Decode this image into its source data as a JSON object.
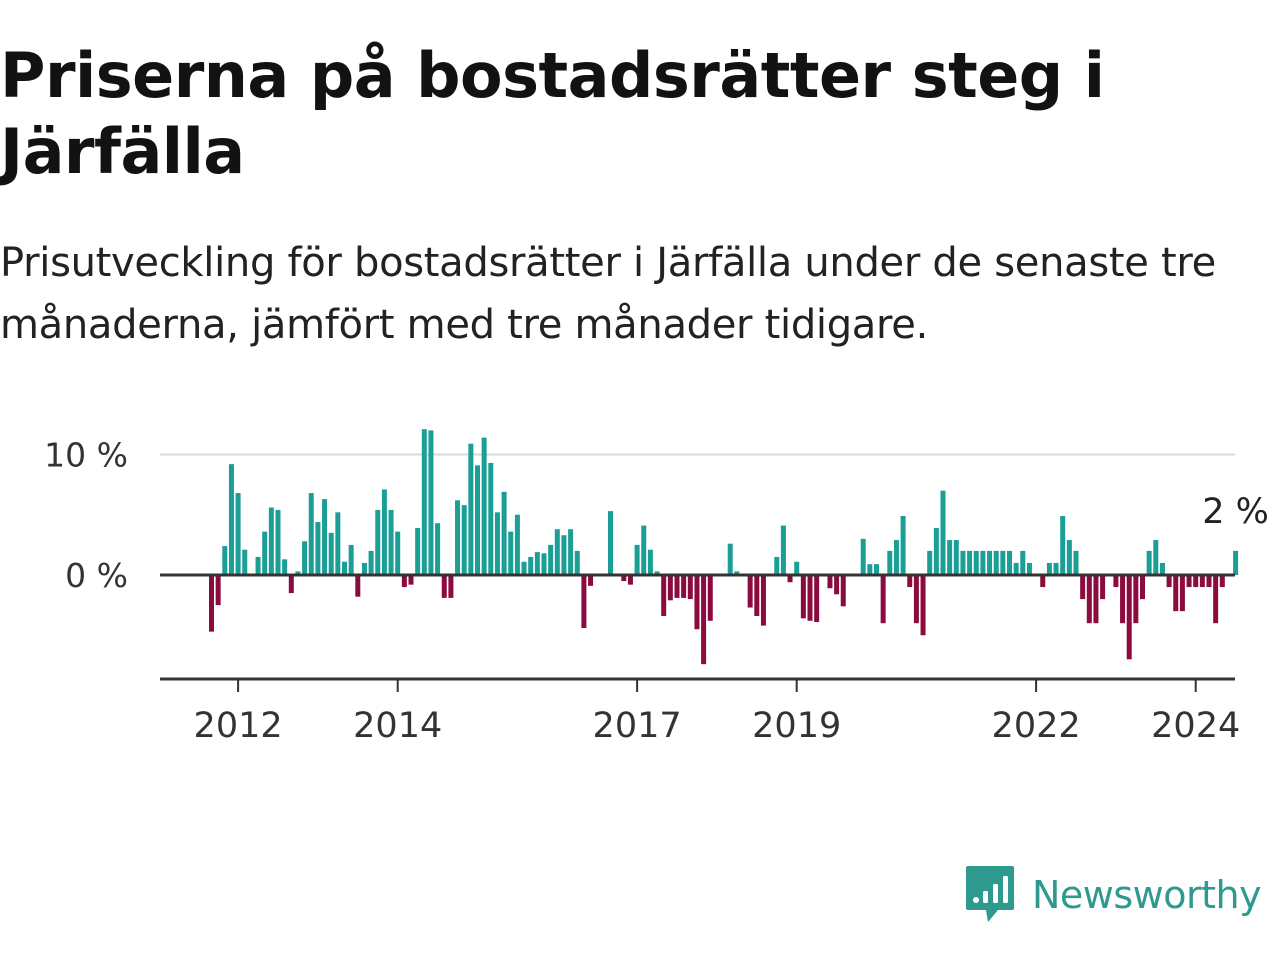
{
  "title": "Priserna på bostadsrätter steg i Järfälla",
  "subtitle": "Prisutveckling för bostadsrätter i Järfälla under de senaste tre månaderna, jämfört med tre månader tidigare.",
  "brand": {
    "name": "Newsworthy",
    "icon": "newsworthy-logo-icon",
    "color": "#2e9a8f"
  },
  "colors": {
    "positive": "#1a9e95",
    "negative": "#8c0b3f",
    "zero_line": "#333333",
    "grid": "#d9d9d9"
  },
  "chart_data": {
    "type": "bar",
    "y_ticks": [
      {
        "value": 0,
        "label": "0 %"
      },
      {
        "value": 10,
        "label": "10 %"
      }
    ],
    "ylim": [
      -8.5,
      11.5
    ],
    "grid": true,
    "x_ticks": [
      {
        "index": 4,
        "label": "2012"
      },
      {
        "index": 28,
        "label": "2014"
      },
      {
        "index": 64,
        "label": "2017"
      },
      {
        "index": 88,
        "label": "2019"
      },
      {
        "index": 124,
        "label": "2022"
      },
      {
        "index": 148,
        "label": "2024"
      }
    ],
    "values": [
      -4.7,
      -2.5,
      2.4,
      9.2,
      6.8,
      2.1,
      0,
      1.5,
      3.6,
      5.6,
      5.4,
      1.3,
      -1.5,
      0.3,
      2.8,
      6.8,
      4.4,
      6.3,
      3.5,
      5.2,
      1.1,
      2.5,
      -1.8,
      1.0,
      2.0,
      5.4,
      7.1,
      5.4,
      3.6,
      -1.0,
      -0.8,
      3.9,
      12.1,
      12.0,
      4.3,
      -1.9,
      -1.9,
      6.2,
      5.8,
      10.9,
      9.1,
      11.4,
      9.3,
      5.2,
      6.9,
      3.6,
      5.0,
      1.1,
      1.5,
      1.9,
      1.8,
      2.5,
      3.8,
      3.3,
      3.8,
      2.0,
      -4.4,
      -0.9,
      0,
      0,
      5.3,
      0,
      -0.5,
      -0.8,
      2.5,
      4.1,
      2.1,
      0.3,
      -3.4,
      -2.1,
      -1.9,
      -1.9,
      -2.0,
      -4.5,
      -7.4,
      -3.8,
      0,
      0,
      2.6,
      0.3,
      0,
      -2.7,
      -3.4,
      -4.2,
      0,
      1.5,
      4.1,
      -0.6,
      1.1,
      -3.6,
      -3.8,
      -3.9,
      0,
      -1.1,
      -1.6,
      -2.6,
      0,
      0,
      3.0,
      0.9,
      0.9,
      -4.0,
      2.0,
      2.9,
      4.9,
      -1.0,
      -4.0,
      -5.0,
      2.0,
      3.9,
      7.0,
      2.9,
      2.9,
      2.0,
      2.0,
      2.0,
      2.0,
      2.0,
      2.0,
      2.0,
      2.0,
      1.0,
      2.0,
      1.0,
      0,
      -1.0,
      1.0,
      1.0,
      4.9,
      2.9,
      2.0,
      -2.0,
      -4.0,
      -4.0,
      -2.0,
      0,
      -1.0,
      -4.0,
      -7.0,
      -4.0,
      -2.0,
      2.0,
      2.9,
      1.0,
      -1.0,
      -3.0,
      -3.0,
      -1.0,
      -1.0,
      -1.0,
      -1.0,
      -4.0,
      -1.0,
      0,
      2.0
    ],
    "last_label": "2 %"
  }
}
